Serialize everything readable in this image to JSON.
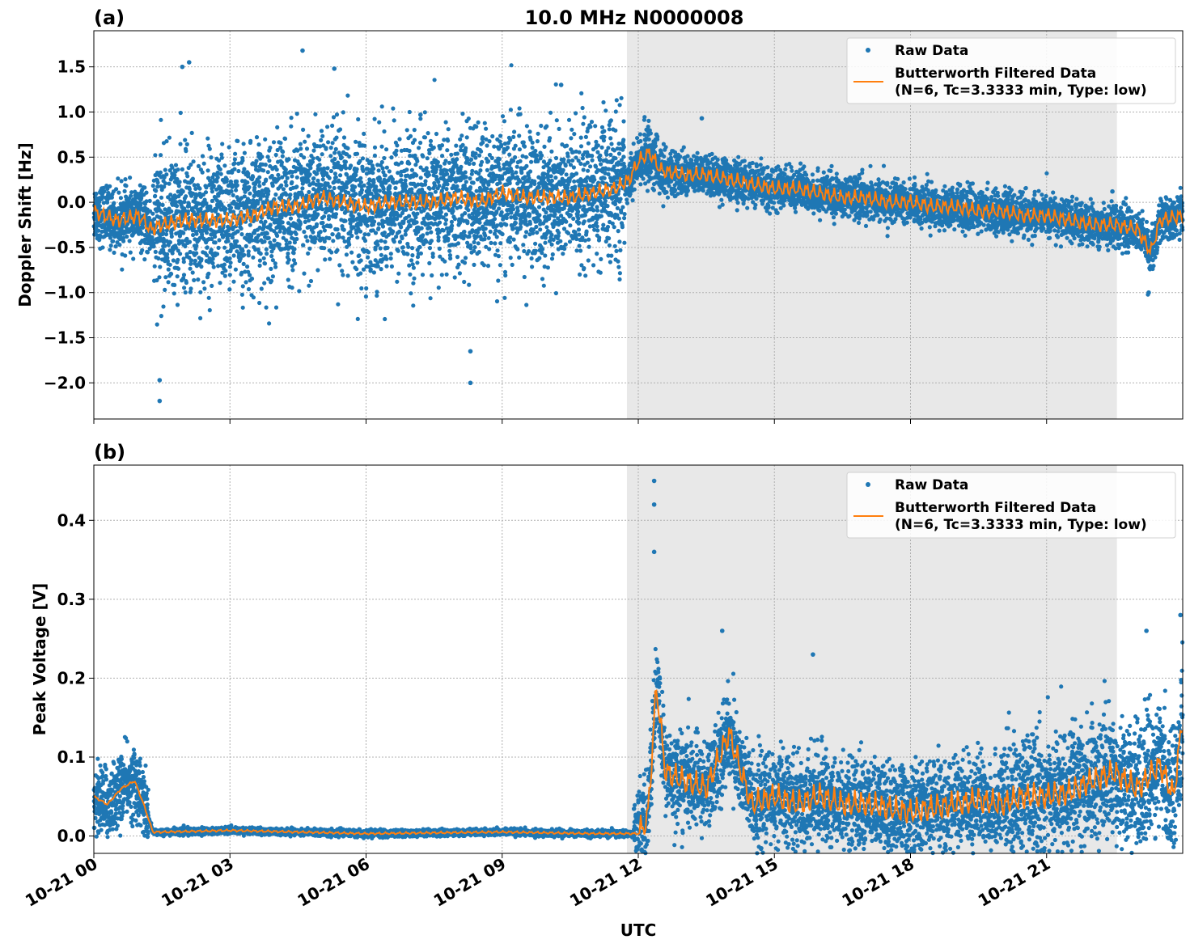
{
  "figure": {
    "title": "10.0 MHz N0000008",
    "xlabel": "UTC",
    "x_tick_labels": [
      "10-21 00",
      "10-21 03",
      "10-21 06",
      "10-21 09",
      "10-21 12",
      "10-21 15",
      "10-21 18",
      "10-21 21"
    ],
    "colors": {
      "raw": "#1f77b4",
      "filtered": "#ff7f0e",
      "shade": "#e8e8e8",
      "grid": "#b0b0b0"
    }
  },
  "chart_data": [
    {
      "type": "scatter",
      "panel_label": "(a)",
      "ylabel": "Doppler Shift [Hz]",
      "xlim_hours": [
        0,
        24
      ],
      "ylim": [
        -2.4,
        1.9
      ],
      "y_ticks": [
        1.5,
        1.0,
        0.5,
        0.0,
        -0.5,
        -1.0,
        -1.5,
        -2.0
      ],
      "y_tick_labels": [
        "1.5",
        "1.0",
        "0.5",
        "0.0",
        "−0.5",
        "−1.0",
        "−1.5",
        "−2.0"
      ],
      "shaded_interval_hours": [
        11.75,
        22.55
      ],
      "grid": true,
      "legend": {
        "placement": "top-right",
        "entries": [
          "Raw Data",
          "Butterworth Filtered Data",
          "(N=6, Tc=3.3333 min, Type: low)"
        ]
      },
      "series": [
        {
          "name": "Butterworth Filtered Data",
          "x_hours": [
            0,
            0.5,
            1.0,
            1.25,
            1.5,
            2.0,
            2.5,
            3.0,
            3.5,
            4.0,
            4.5,
            5.0,
            5.5,
            6.0,
            6.5,
            7.0,
            7.5,
            8.0,
            8.5,
            9.0,
            9.5,
            10.0,
            10.5,
            11.0,
            11.5,
            11.8,
            12.0,
            12.25,
            12.5,
            13.0,
            13.5,
            14.0,
            14.5,
            15.0,
            15.5,
            16.0,
            16.5,
            17.0,
            17.5,
            18.0,
            18.5,
            19.0,
            19.5,
            20.0,
            20.5,
            21.0,
            21.5,
            22.0,
            22.5,
            23.0,
            23.3,
            23.5,
            24.0
          ],
          "values": [
            -0.1,
            -0.2,
            -0.15,
            -0.3,
            -0.25,
            -0.2,
            -0.2,
            -0.2,
            -0.15,
            -0.05,
            -0.05,
            0.05,
            0.0,
            -0.05,
            0.0,
            0.0,
            0.0,
            0.05,
            0.0,
            0.1,
            0.05,
            0.05,
            0.05,
            0.1,
            0.15,
            0.25,
            0.45,
            0.55,
            0.35,
            0.3,
            0.3,
            0.25,
            0.2,
            0.15,
            0.15,
            0.1,
            0.05,
            0.05,
            0.0,
            0.0,
            -0.05,
            -0.05,
            -0.1,
            -0.1,
            -0.15,
            -0.15,
            -0.2,
            -0.25,
            -0.25,
            -0.3,
            -0.55,
            -0.2,
            -0.15
          ]
        },
        {
          "name": "Raw Data",
          "x_hours": [
            1.45,
            1.45,
            1.95,
            2.1,
            4.6,
            5.3,
            7.2,
            8.3,
            8.3,
            10.3,
            12.4,
            13.4,
            22.45,
            23.25
          ],
          "values": [
            -2.2,
            -1.97,
            1.5,
            1.55,
            1.68,
            1.48,
            0.97,
            -2.0,
            -1.65,
            1.3,
            0.75,
            0.93,
            0.12,
            -1.0
          ]
        }
      ]
    },
    {
      "type": "scatter",
      "panel_label": "(b)",
      "ylabel": "Peak Voltage [V]",
      "xlim_hours": [
        0,
        24
      ],
      "ylim": [
        -0.022,
        0.47
      ],
      "y_ticks": [
        0.0,
        0.1,
        0.2,
        0.3,
        0.4
      ],
      "y_tick_labels": [
        "0.0",
        "0.1",
        "0.2",
        "0.3",
        "0.4"
      ],
      "shaded_interval_hours": [
        11.75,
        22.55
      ],
      "grid": true,
      "legend": {
        "placement": "top-right",
        "entries": [
          "Raw Data",
          "Butterworth Filtered Data",
          "(N=6, Tc=3.3333 min, Type: low)"
        ]
      },
      "series": [
        {
          "name": "Butterworth Filtered Data",
          "x_hours": [
            0,
            0.3,
            0.6,
            0.9,
            1.1,
            1.3,
            1.5,
            3.0,
            6.0,
            9.0,
            11.0,
            12.0,
            12.2,
            12.3,
            12.4,
            12.6,
            13.0,
            13.5,
            14.0,
            14.5,
            15.0,
            15.5,
            16.0,
            16.5,
            17.0,
            17.5,
            18.0,
            18.5,
            19.0,
            19.5,
            20.0,
            20.5,
            21.0,
            21.5,
            22.0,
            22.5,
            23.0,
            23.5,
            23.8,
            24.0
          ],
          "values": [
            0.05,
            0.04,
            0.06,
            0.07,
            0.04,
            0.005,
            0.005,
            0.007,
            0.003,
            0.005,
            0.003,
            0.003,
            0.02,
            0.1,
            0.19,
            0.08,
            0.07,
            0.06,
            0.13,
            0.04,
            0.05,
            0.04,
            0.05,
            0.04,
            0.04,
            0.035,
            0.03,
            0.035,
            0.04,
            0.045,
            0.04,
            0.05,
            0.05,
            0.055,
            0.07,
            0.08,
            0.06,
            0.09,
            0.05,
            0.15
          ]
        },
        {
          "name": "Raw Data",
          "x_hours": [
            12.35,
            12.35,
            12.35,
            13.85,
            15.85,
            23.2,
            23.95
          ],
          "values": [
            0.45,
            0.42,
            0.36,
            0.26,
            0.23,
            0.26,
            0.28
          ]
        }
      ]
    }
  ]
}
